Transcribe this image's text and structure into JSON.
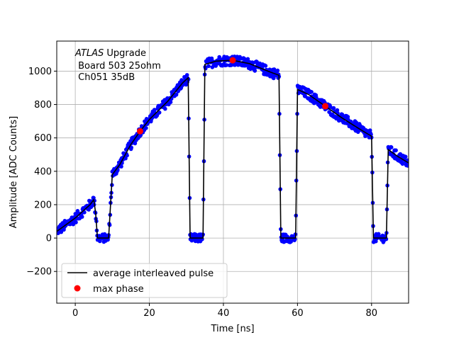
{
  "chart_data": {
    "type": "line",
    "title": "",
    "xlabel": "Time [ns]",
    "ylabel": "Amplitude [ADC Counts]",
    "xlim": [
      -5,
      90
    ],
    "ylim": [
      -390,
      1180
    ],
    "xticks": [
      0,
      20,
      40,
      60,
      80
    ],
    "yticks": [
      -200,
      0,
      200,
      400,
      600,
      800,
      1000
    ],
    "ytick_labels": [
      "−200",
      "0",
      "200",
      "400",
      "600",
      "800",
      "1000"
    ],
    "grid": true,
    "annotation": {
      "line1_italic": "ATLAS",
      "line1_rest": " Upgrade",
      "line2": " Board 503 25ohm",
      "line3": " Ch051 35dB"
    },
    "legend": {
      "position": "lower-left",
      "entries": [
        {
          "label": "average interleaved pulse",
          "color": "#000000",
          "marker": "line"
        },
        {
          "label": "max phase",
          "color": "#ff0000",
          "marker": "dot"
        }
      ]
    },
    "series": [
      {
        "name": "average interleaved pulse",
        "color": "#000000",
        "points": [
          [
            -5,
            40
          ],
          [
            0,
            120
          ],
          [
            4,
            200
          ],
          [
            5,
            230
          ],
          [
            5.5,
            150
          ],
          [
            6,
            0
          ],
          [
            9,
            0
          ],
          [
            10,
            380
          ],
          [
            12,
            440
          ],
          [
            15,
            560
          ],
          [
            17.5,
            640
          ],
          [
            20,
            710
          ],
          [
            25,
            820
          ],
          [
            29,
            930
          ],
          [
            30.5,
            960
          ],
          [
            31,
            0
          ],
          [
            34.5,
            0
          ],
          [
            35,
            1040
          ],
          [
            38,
            1060
          ],
          [
            42.5,
            1065
          ],
          [
            47,
            1045
          ],
          [
            52,
            1000
          ],
          [
            55,
            975
          ],
          [
            55.5,
            0
          ],
          [
            59.5,
            0
          ],
          [
            60,
            890
          ],
          [
            63,
            860
          ],
          [
            67.5,
            790
          ],
          [
            72,
            720
          ],
          [
            77,
            650
          ],
          [
            80,
            610
          ],
          [
            80.5,
            0
          ],
          [
            84,
            0
          ],
          [
            84.5,
            530
          ],
          [
            87,
            490
          ],
          [
            90,
            450
          ]
        ]
      }
    ],
    "max_phase": {
      "name": "max phase",
      "color": "#ff0000",
      "points": [
        [
          17.5,
          640
        ],
        [
          42.5,
          1065
        ],
        [
          67.5,
          790
        ]
      ]
    },
    "scatter_color": "#0000ff"
  }
}
